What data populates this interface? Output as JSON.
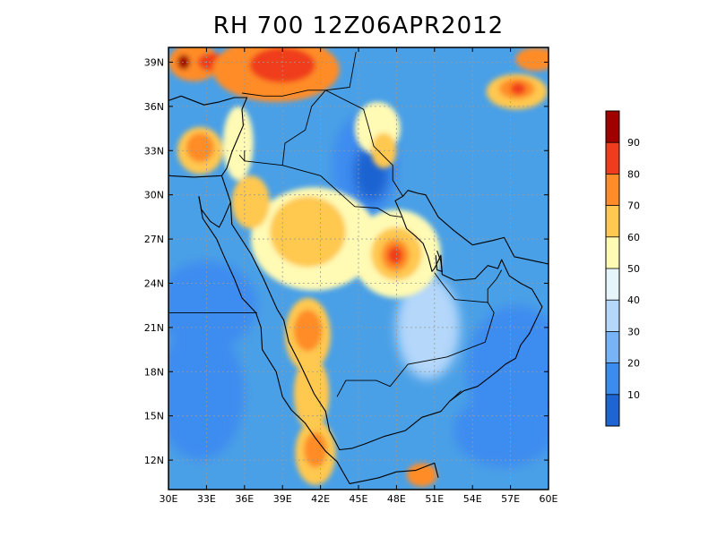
{
  "title": "RH 700 12Z06APR2012",
  "map": {
    "variable": "RH",
    "level": "700",
    "lon_range": [
      30,
      60
    ],
    "lat_range": [
      10,
      40
    ],
    "lon_ticks": [
      {
        "value": 30,
        "label": "30E"
      },
      {
        "value": 33,
        "label": "33E"
      },
      {
        "value": 36,
        "label": "36E"
      },
      {
        "value": 39,
        "label": "39E"
      },
      {
        "value": 42,
        "label": "42E"
      },
      {
        "value": 45,
        "label": "45E"
      },
      {
        "value": 48,
        "label": "48E"
      },
      {
        "value": 51,
        "label": "51E"
      },
      {
        "value": 54,
        "label": "54E"
      },
      {
        "value": 57,
        "label": "57E"
      },
      {
        "value": 60,
        "label": "60E"
      }
    ],
    "lat_ticks": [
      {
        "value": 12,
        "label": "12N"
      },
      {
        "value": 15,
        "label": "15N"
      },
      {
        "value": 18,
        "label": "18N"
      },
      {
        "value": 21,
        "label": "21N"
      },
      {
        "value": 24,
        "label": "24N"
      },
      {
        "value": 27,
        "label": "27N"
      },
      {
        "value": 30,
        "label": "30N"
      },
      {
        "value": 33,
        "label": "33N"
      },
      {
        "value": 36,
        "label": "36N"
      },
      {
        "value": 39,
        "label": "39N"
      }
    ],
    "grid": "dotted",
    "background_color": "#4aa0e6",
    "colorbar": {
      "placement": "right",
      "orientation": "vertical",
      "labels": [
        "10",
        "20",
        "30",
        "40",
        "50",
        "60",
        "70",
        "80",
        "90"
      ],
      "colors": [
        "#1e64d2",
        "#3c8cf0",
        "#78b4f5",
        "#b4d7fa",
        "#e6f5fa",
        "#fffab4",
        "#ffc850",
        "#ff8c28",
        "#f03c1e",
        "#a00000"
      ]
    },
    "moist_patches": [
      {
        "lon": 32.0,
        "lat": 39.0,
        "rx": 2.0,
        "ry": 1.3,
        "level": "#ff8c28"
      },
      {
        "lon": 33.5,
        "lat": 39.0,
        "rx": 1.2,
        "ry": 0.6,
        "level": "#f03c1e"
      },
      {
        "lon": 38.5,
        "lat": 38.5,
        "rx": 5.0,
        "ry": 2.2,
        "level": "#ff8c28"
      },
      {
        "lon": 39.0,
        "lat": 38.8,
        "rx": 2.6,
        "ry": 1.2,
        "level": "#f03c1e"
      },
      {
        "lon": 31.2,
        "lat": 39.0,
        "rx": 0.5,
        "ry": 0.5,
        "level": "#a00000"
      },
      {
        "lon": 32.5,
        "lat": 33.0,
        "rx": 1.8,
        "ry": 1.6,
        "level": "#ffc850"
      },
      {
        "lon": 32.5,
        "lat": 33.2,
        "rx": 1.1,
        "ry": 1.0,
        "level": "#ff8c28"
      },
      {
        "lon": 57.5,
        "lat": 37.0,
        "rx": 2.4,
        "ry": 1.2,
        "level": "#ffc850"
      },
      {
        "lon": 57.5,
        "lat": 37.2,
        "rx": 1.4,
        "ry": 0.7,
        "level": "#ff8c28"
      },
      {
        "lon": 57.6,
        "lat": 37.2,
        "rx": 0.6,
        "ry": 0.4,
        "level": "#f03c1e"
      },
      {
        "lon": 59.0,
        "lat": 39.2,
        "rx": 1.6,
        "ry": 0.8,
        "level": "#ff8c28"
      },
      {
        "lon": 41.5,
        "lat": 27.0,
        "rx": 5.0,
        "ry": 3.5,
        "level": "#fffab4"
      },
      {
        "lon": 41.0,
        "lat": 27.5,
        "rx": 3.0,
        "ry": 2.4,
        "level": "#ffc850"
      },
      {
        "lon": 48.0,
        "lat": 26.0,
        "rx": 3.5,
        "ry": 3.0,
        "level": "#fffab4"
      },
      {
        "lon": 48.0,
        "lat": 26.0,
        "rx": 2.0,
        "ry": 1.8,
        "level": "#ffc850"
      },
      {
        "lon": 47.9,
        "lat": 25.9,
        "rx": 1.1,
        "ry": 1.1,
        "level": "#ff8c28"
      },
      {
        "lon": 47.9,
        "lat": 25.9,
        "rx": 0.6,
        "ry": 0.6,
        "level": "#f03c1e"
      },
      {
        "lon": 41.0,
        "lat": 20.5,
        "rx": 1.8,
        "ry": 2.5,
        "level": "#ffc850"
      },
      {
        "lon": 41.0,
        "lat": 20.8,
        "rx": 1.1,
        "ry": 1.4,
        "level": "#ff8c28"
      },
      {
        "lon": 41.3,
        "lat": 16.5,
        "rx": 1.4,
        "ry": 2.5,
        "level": "#ffc850"
      },
      {
        "lon": 41.6,
        "lat": 12.5,
        "rx": 1.6,
        "ry": 2.2,
        "level": "#ffc850"
      },
      {
        "lon": 41.6,
        "lat": 12.7,
        "rx": 0.9,
        "ry": 1.2,
        "level": "#ff8c28"
      },
      {
        "lon": 50.0,
        "lat": 11.0,
        "rx": 1.2,
        "ry": 0.8,
        "level": "#ff8c28"
      },
      {
        "lon": 36.5,
        "lat": 29.5,
        "rx": 1.5,
        "ry": 1.8,
        "level": "#ffc850"
      },
      {
        "lon": 46.5,
        "lat": 34.5,
        "rx": 1.8,
        "ry": 1.8,
        "level": "#fffab4"
      },
      {
        "lon": 47.0,
        "lat": 33.0,
        "rx": 1.0,
        "ry": 1.2,
        "level": "#ffc850"
      },
      {
        "lon": 35.5,
        "lat": 33.5,
        "rx": 1.2,
        "ry": 2.5,
        "level": "#fffab4"
      }
    ],
    "dry_patches": [
      {
        "lon": 45.5,
        "lat": 32.0,
        "rx": 2.6,
        "ry": 3.5,
        "level": "#3c8cf0"
      },
      {
        "lon": 46.0,
        "lat": 31.5,
        "rx": 1.4,
        "ry": 2.0,
        "level": "#1e64d2"
      },
      {
        "lon": 33.0,
        "lat": 22.5,
        "rx": 4.0,
        "ry": 3.0,
        "level": "#3c8cf0"
      },
      {
        "lon": 32.5,
        "lat": 16.5,
        "rx": 3.5,
        "ry": 4.5,
        "level": "#3c8cf0"
      },
      {
        "lon": 57.5,
        "lat": 18.0,
        "rx": 4.0,
        "ry": 4.5,
        "level": "#3c8cf0"
      },
      {
        "lon": 56.5,
        "lat": 14.0,
        "rx": 4.0,
        "ry": 2.5,
        "level": "#3c8cf0"
      },
      {
        "lon": 50.5,
        "lat": 21.0,
        "rx": 2.5,
        "ry": 3.5,
        "level": "#b4d7fa"
      }
    ],
    "land_outlines": [
      [
        [
          30.0,
          31.3
        ],
        [
          32.0,
          31.2
        ],
        [
          34.2,
          31.3
        ],
        [
          34.6,
          31.8
        ],
        [
          35.0,
          32.9
        ],
        [
          35.5,
          33.9
        ],
        [
          35.9,
          34.7
        ],
        [
          35.8,
          35.8
        ],
        [
          36.2,
          36.6
        ],
        [
          35.2,
          36.6
        ],
        [
          34.0,
          36.3
        ],
        [
          32.8,
          36.1
        ],
        [
          31.0,
          36.7
        ],
        [
          30.0,
          36.4
        ]
      ],
      [
        [
          34.2,
          31.3
        ],
        [
          34.9,
          29.5
        ],
        [
          35.0,
          28.0
        ],
        [
          36.5,
          26.0
        ],
        [
          37.5,
          24.3
        ],
        [
          38.6,
          22.2
        ],
        [
          39.1,
          21.5
        ],
        [
          39.5,
          20.0
        ],
        [
          40.4,
          18.5
        ],
        [
          41.5,
          16.5
        ],
        [
          42.4,
          15.3
        ],
        [
          42.7,
          14.0
        ],
        [
          43.2,
          13.2
        ],
        [
          43.5,
          12.7
        ],
        [
          44.5,
          12.8
        ],
        [
          45.5,
          13.1
        ],
        [
          47.0,
          13.6
        ],
        [
          48.7,
          14.0
        ],
        [
          50.0,
          14.9
        ],
        [
          51.5,
          15.3
        ],
        [
          52.2,
          16.0
        ],
        [
          53.3,
          16.7
        ],
        [
          54.4,
          17.0
        ],
        [
          55.3,
          17.6
        ],
        [
          55.9,
          18.0
        ],
        [
          56.6,
          18.5
        ],
        [
          57.4,
          18.9
        ],
        [
          57.8,
          19.8
        ],
        [
          58.5,
          20.6
        ],
        [
          59.5,
          22.4
        ],
        [
          58.7,
          23.6
        ],
        [
          57.8,
          24.0
        ],
        [
          56.9,
          24.5
        ],
        [
          56.3,
          25.6
        ],
        [
          56.0,
          25.0
        ],
        [
          55.2,
          25.2
        ],
        [
          54.2,
          24.3
        ],
        [
          52.6,
          24.2
        ],
        [
          51.6,
          24.6
        ],
        [
          51.5,
          25.9
        ],
        [
          51.0,
          25.0
        ],
        [
          50.8,
          24.8
        ],
        [
          50.5,
          25.8
        ],
        [
          50.1,
          26.7
        ],
        [
          49.5,
          27.2
        ],
        [
          48.8,
          27.7
        ],
        [
          48.4,
          28.6
        ],
        [
          47.9,
          29.6
        ],
        [
          48.5,
          29.9
        ],
        [
          48.9,
          30.3
        ],
        [
          49.7,
          30.1
        ],
        [
          50.3,
          30.0
        ],
        [
          51.3,
          28.5
        ],
        [
          52.5,
          27.6
        ],
        [
          54.0,
          26.6
        ],
        [
          55.6,
          26.9
        ],
        [
          56.5,
          27.1
        ],
        [
          57.3,
          25.8
        ],
        [
          59.5,
          25.4
        ],
        [
          60.0,
          25.3
        ]
      ],
      [
        [
          32.4,
          29.9
        ],
        [
          32.6,
          29.0
        ],
        [
          33.3,
          28.2
        ],
        [
          34.0,
          27.8
        ],
        [
          34.3,
          28.3
        ],
        [
          34.9,
          29.5
        ]
      ],
      [
        [
          32.4,
          29.9
        ],
        [
          32.7,
          28.4
        ],
        [
          33.8,
          27.0
        ],
        [
          34.4,
          25.8
        ],
        [
          35.2,
          24.3
        ],
        [
          35.8,
          23.0
        ],
        [
          36.9,
          22.0
        ],
        [
          37.3,
          21.0
        ],
        [
          37.4,
          19.5
        ],
        [
          38.5,
          18.0
        ],
        [
          39.0,
          16.3
        ],
        [
          39.7,
          15.4
        ],
        [
          40.8,
          14.5
        ],
        [
          41.6,
          13.5
        ],
        [
          42.4,
          12.6
        ],
        [
          43.3,
          11.9
        ],
        [
          44.3,
          10.4
        ],
        [
          45.5,
          10.6
        ],
        [
          46.6,
          10.8
        ],
        [
          48.0,
          11.2
        ],
        [
          49.5,
          11.3
        ],
        [
          51.0,
          11.8
        ],
        [
          51.3,
          10.8
        ]
      ],
      [
        [
          51.2,
          26.2
        ],
        [
          51.5,
          25.5
        ],
        [
          51.6,
          24.8
        ],
        [
          51.2,
          24.9
        ],
        [
          51.1,
          25.9
        ]
      ]
    ],
    "borders": [
      [
        [
          30.0,
          22.0
        ],
        [
          37.0,
          22.0
        ]
      ],
      [
        [
          36.0,
          32.3
        ],
        [
          39.0,
          32.0
        ],
        [
          42.0,
          31.3
        ],
        [
          44.7,
          29.2
        ],
        [
          46.5,
          29.1
        ],
        [
          47.5,
          28.6
        ],
        [
          48.4,
          28.5
        ]
      ],
      [
        [
          39.0,
          32.0
        ],
        [
          39.2,
          33.5
        ],
        [
          40.8,
          34.4
        ],
        [
          41.3,
          36.0
        ],
        [
          42.4,
          37.1
        ]
      ],
      [
        [
          35.8,
          36.9
        ],
        [
          37.5,
          36.7
        ],
        [
          39.0,
          36.7
        ],
        [
          41.0,
          37.1
        ],
        [
          42.4,
          37.1
        ],
        [
          44.3,
          37.3
        ],
        [
          44.8,
          39.7
        ]
      ],
      [
        [
          36.0,
          33.0
        ],
        [
          36.0,
          32.3
        ],
        [
          35.6,
          32.7
        ]
      ],
      [
        [
          42.4,
          37.1
        ],
        [
          45.4,
          35.8
        ],
        [
          45.8,
          34.6
        ],
        [
          46.2,
          33.3
        ],
        [
          47.7,
          32.0
        ],
        [
          47.7,
          31.0
        ],
        [
          48.5,
          29.9
        ]
      ],
      [
        [
          43.3,
          16.3
        ],
        [
          44.0,
          17.4
        ],
        [
          46.4,
          17.4
        ],
        [
          47.5,
          17.0
        ],
        [
          48.9,
          18.5
        ],
        [
          52.0,
          19.0
        ],
        [
          55.0,
          20.0
        ],
        [
          55.7,
          22.0
        ],
        [
          55.2,
          22.7
        ],
        [
          55.2,
          23.6
        ],
        [
          55.9,
          24.3
        ],
        [
          56.3,
          24.9
        ]
      ],
      [
        [
          51.0,
          24.7
        ],
        [
          51.6,
          24.0
        ],
        [
          52.6,
          22.9
        ],
        [
          55.2,
          22.7
        ]
      ],
      [
        [
          52.2,
          16.0
        ],
        [
          53.1,
          16.7
        ]
      ]
    ]
  }
}
